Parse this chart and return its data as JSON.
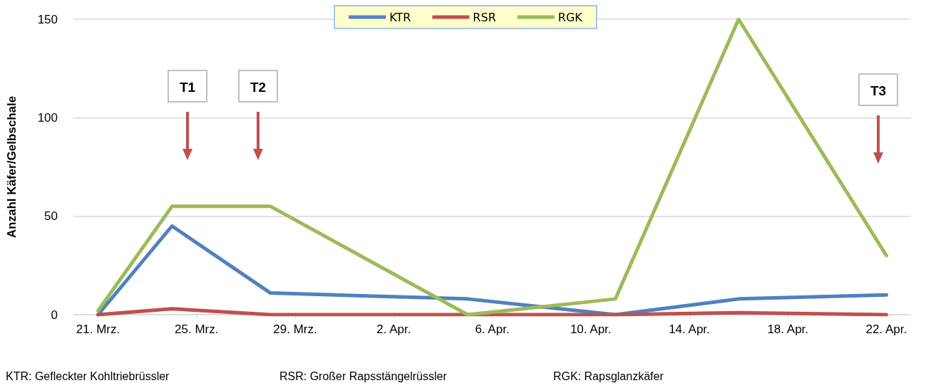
{
  "chart_data": {
    "type": "line",
    "ylabel": "Anzahl Käfer/Gelbschale",
    "x": [
      "--03-21",
      "--03-24",
      "--03-28",
      "--04-05",
      "--04-11",
      "--04-16",
      "--04-22"
    ],
    "series": [
      {
        "name": "KTR",
        "color": "#4f81bd",
        "values": [
          0,
          45,
          11,
          8,
          0,
          8,
          10
        ]
      },
      {
        "name": "RSR",
        "color": "#c0504d",
        "values": [
          0,
          3,
          0,
          0,
          0,
          1,
          0
        ]
      },
      {
        "name": "RGK",
        "color": "#9bbb59",
        "values": [
          2,
          55,
          55,
          0,
          8,
          150,
          30
        ]
      }
    ],
    "xlim": [
      "--03-20",
      "--04-23"
    ],
    "xticks": [
      {
        "value": "--03-21",
        "label": "21. Mrz."
      },
      {
        "value": "--03-25",
        "label": "25. Mrz."
      },
      {
        "value": "--03-29",
        "label": "29. Mrz."
      },
      {
        "value": "--04-02",
        "label": "2. Apr."
      },
      {
        "value": "--04-06",
        "label": "6. Apr."
      },
      {
        "value": "--04-10",
        "label": "10. Apr."
      },
      {
        "value": "--04-14",
        "label": "14. Apr."
      },
      {
        "value": "--04-18",
        "label": "18. Apr."
      },
      {
        "value": "--04-22",
        "label": "22. Apr."
      }
    ],
    "ylim": [
      0,
      150
    ],
    "yticks": [
      0,
      50,
      100,
      150
    ],
    "grid": "y",
    "legend": "top",
    "marker": "none",
    "line_style": "solid",
    "annotations": [
      "T1",
      "T2",
      "T3",
      "KTR: Gefleckter Kohltriebrüssler",
      "RSR: Großer Rapsstängelrüssler",
      "RGK: Rapsglanzkäfer"
    ]
  }
}
